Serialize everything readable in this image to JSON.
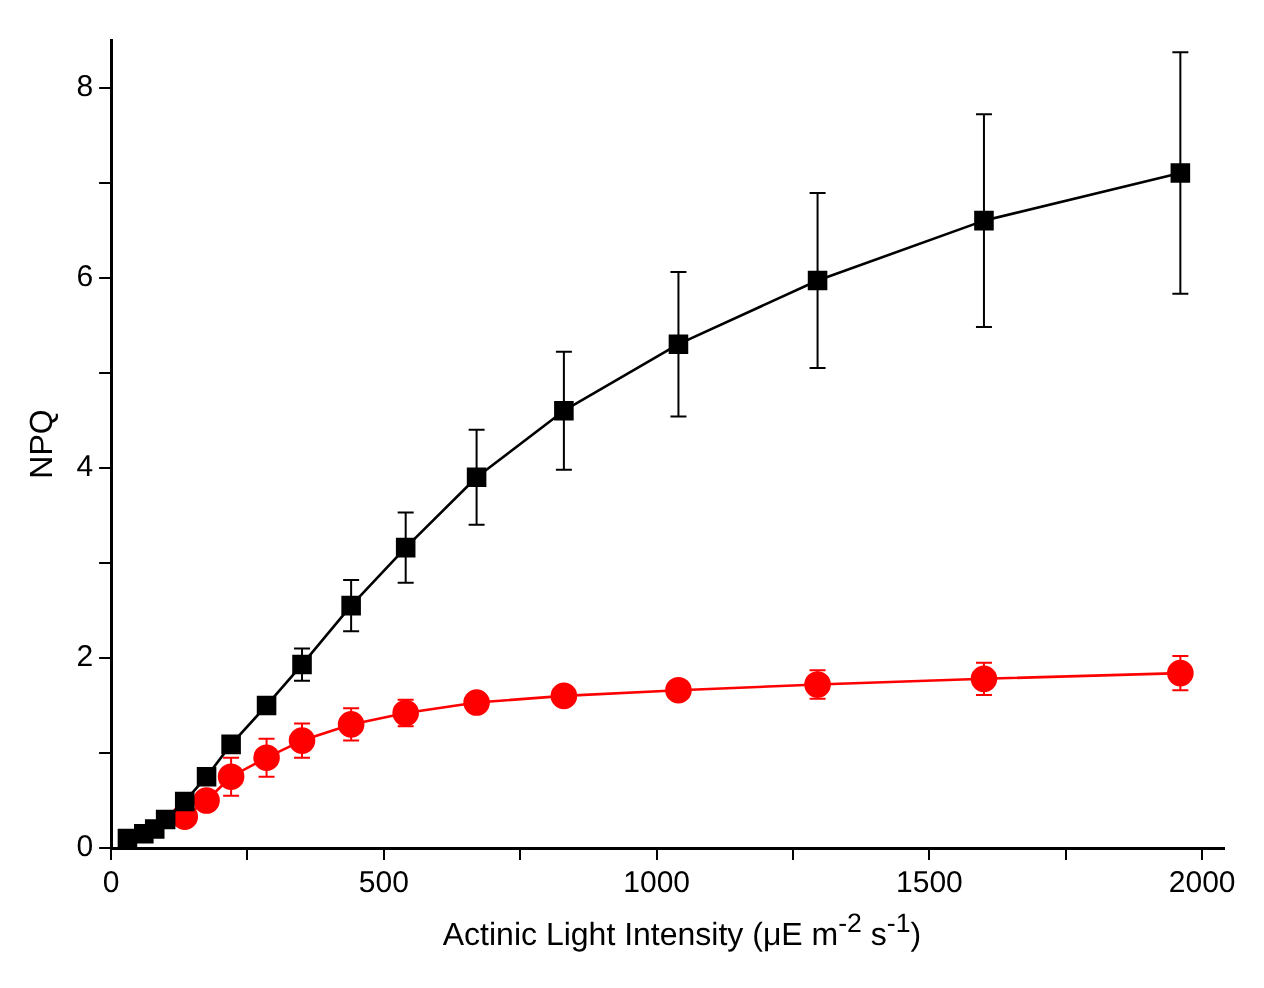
{
  "chart_data": {
    "type": "line",
    "xlabel": "Actinic Light Intensity (μE m$^{-2}$ s$^{-1}$)",
    "ylabel": "NPQ",
    "x": [
      30,
      45,
      60,
      80,
      100,
      135,
      175,
      220,
      285,
      350,
      440,
      540,
      670,
      830,
      1040,
      1295,
      1600,
      1960
    ],
    "series": [
      {
        "color": "#000000",
        "marker": "square",
        "values": [
          0.1,
          null,
          0.15,
          0.2,
          0.3,
          0.49,
          0.75,
          1.09,
          1.5,
          1.93,
          2.55,
          3.16,
          3.9,
          4.6,
          5.3,
          5.97,
          6.6,
          7.1
        ],
        "errors": [
          null,
          null,
          null,
          null,
          null,
          null,
          null,
          null,
          null,
          0.17,
          0.27,
          0.37,
          0.5,
          0.62,
          0.76,
          0.92,
          1.12,
          1.27
        ]
      },
      {
        "color": "#ff0000",
        "marker": "circle",
        "values": [
          null,
          null,
          null,
          null,
          null,
          0.33,
          0.5,
          0.75,
          0.95,
          1.13,
          1.3,
          1.42,
          1.53,
          1.6,
          1.66,
          1.72,
          1.78,
          1.84
        ],
        "errors": [
          null,
          null,
          null,
          null,
          null,
          null,
          null,
          0.2,
          0.2,
          0.18,
          0.17,
          0.14,
          null,
          null,
          null,
          0.15,
          0.17,
          0.18
        ]
      }
    ],
    "xlim": [
      0,
      2040
    ],
    "xticks": [
      0,
      {
        "value": 250,
        "label": null
      },
      500,
      {
        "value": 750,
        "label": null
      },
      1000,
      {
        "value": 1250,
        "label": null
      },
      1500,
      {
        "value": 1750,
        "label": null
      },
      2000
    ],
    "ylim": [
      0,
      8.5
    ],
    "yticks": [
      0,
      {
        "value": 1,
        "label": null
      },
      2,
      {
        "value": 3,
        "label": null
      },
      4,
      {
        "value": 5,
        "label": null
      },
      6,
      {
        "value": 7,
        "label": null
      },
      8
    ],
    "grid": false,
    "legend": false,
    "line_style": "solid"
  }
}
